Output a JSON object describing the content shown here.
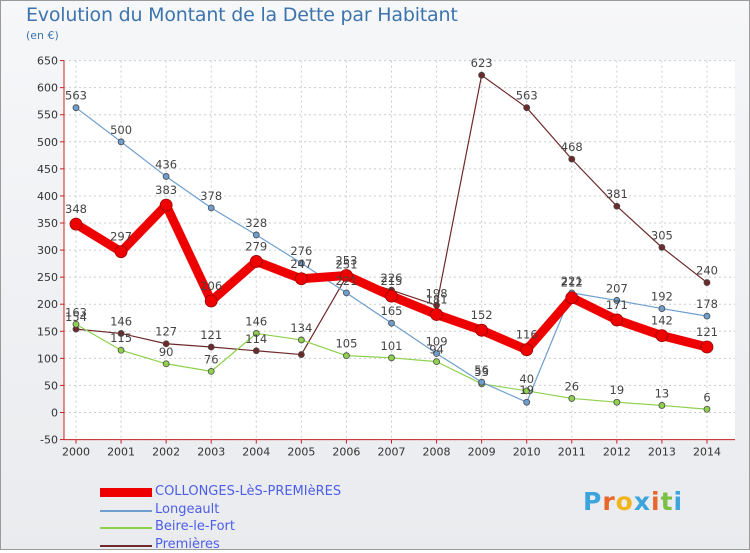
{
  "chart_data": {
    "type": "line",
    "title": "Evolution du Montant de la Dette par Habitant",
    "subtitle": "(en €)",
    "xlabel": "",
    "ylabel": "",
    "ylim": [
      -50,
      650
    ],
    "yticks": [
      "-50",
      "0",
      "50",
      "100",
      "150",
      "200",
      "250",
      "300",
      "350",
      "400",
      "450",
      "500",
      "550",
      "600",
      "650"
    ],
    "categories": [
      "2000",
      "2001",
      "2002",
      "2003",
      "2004",
      "2005",
      "2006",
      "2007",
      "2008",
      "2009",
      "2010",
      "2011",
      "2012",
      "2013",
      "2014"
    ],
    "series": [
      {
        "name": "Premières",
        "color": "#6e2a2a",
        "values": [
          154,
          146,
          127,
          121,
          114,
          107,
          251,
          226,
          198,
          623,
          563,
          468,
          381,
          305,
          240
        ],
        "labels": [
          "154",
          "146",
          "127",
          "121",
          "114",
          "",
          "251",
          "226",
          "198",
          "623",
          "563",
          "468",
          "381",
          "305",
          "240"
        ]
      },
      {
        "name": "Beire-le-Fort",
        "color": "#8ed14d",
        "values": [
          163,
          115,
          90,
          76,
          146,
          134,
          105,
          101,
          94,
          53,
          40,
          26,
          19,
          13,
          6
        ],
        "labels": [
          "163",
          "115",
          "90",
          "76",
          "146",
          "134",
          "105",
          "101",
          "94",
          "53",
          "40",
          "26",
          "19",
          "13",
          "6"
        ]
      },
      {
        "name": "Longeault",
        "color": "#6e9ece",
        "values": [
          563,
          500,
          436,
          378,
          328,
          276,
          221,
          165,
          109,
          56,
          19,
          221,
          207,
          192,
          178
        ],
        "labels": [
          "563",
          "500",
          "436",
          "378",
          "328",
          "276",
          "221",
          "165",
          "109",
          "56",
          "19",
          "221",
          "207",
          "192",
          "178"
        ]
      },
      {
        "name": "COLLONGES-LèS-PREMIèRES",
        "color": "#ee0000",
        "values": [
          348,
          297,
          383,
          206,
          279,
          247,
          253,
          215,
          181,
          152,
          116,
          212,
          171,
          142,
          121
        ],
        "labels": [
          "348",
          "297",
          "383",
          "206",
          "279",
          "247",
          "253",
          "215",
          "181",
          "152",
          "116",
          "212",
          "171",
          "142",
          "121"
        ]
      }
    ],
    "legend_order": [
      3,
      2,
      1,
      0
    ],
    "legend_text_color": "#4d5ee8"
  },
  "logo": {
    "letters": [
      "P",
      "r",
      "o",
      "x",
      "i",
      "t",
      "i"
    ],
    "colors": [
      "#3ba4dd",
      "#e9672b",
      "#f1b51b",
      "#3ba4dd",
      "#e9672b",
      "#7bc043",
      "#3ba4dd"
    ]
  }
}
